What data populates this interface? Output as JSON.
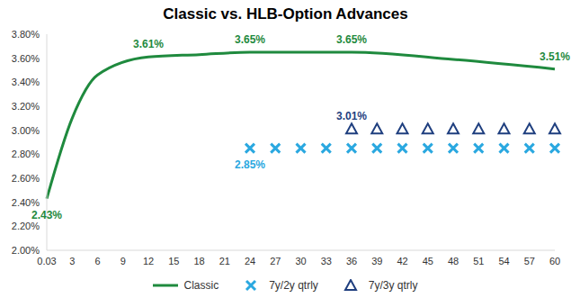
{
  "chart_data": {
    "type": "line",
    "title": "Classic vs. HLB-Option Advances",
    "categories": [
      "0.03",
      "3",
      "6",
      "9",
      "12",
      "15",
      "18",
      "21",
      "24",
      "27",
      "30",
      "33",
      "36",
      "39",
      "42",
      "45",
      "48",
      "51",
      "54",
      "57",
      "60"
    ],
    "series": [
      {
        "name": "Classic",
        "color": "#1f8a3e",
        "line_style": "solid",
        "marker": "none",
        "values": [
          2.43,
          3.1,
          3.46,
          null,
          3.61,
          null,
          3.63,
          null,
          3.65,
          null,
          null,
          null,
          3.65,
          null,
          null,
          null,
          3.59,
          null,
          null,
          null,
          3.51
        ],
        "value_labels": [
          "2.43%",
          null,
          null,
          null,
          "3.61%",
          null,
          null,
          null,
          "3.65%",
          null,
          null,
          null,
          "3.65%",
          null,
          null,
          null,
          null,
          null,
          null,
          null,
          "3.51%"
        ]
      },
      {
        "name": "7y/2y qtrly",
        "color": "#2aa8e0",
        "line_style": "none",
        "marker": "x",
        "values": [
          null,
          null,
          null,
          null,
          null,
          null,
          null,
          null,
          2.85,
          2.85,
          2.85,
          2.85,
          2.85,
          2.85,
          2.85,
          2.85,
          2.85,
          2.85,
          2.85,
          2.85,
          2.85
        ],
        "value_labels": [
          null,
          null,
          null,
          null,
          null,
          null,
          null,
          null,
          "2.85%",
          null,
          null,
          null,
          null,
          null,
          null,
          null,
          null,
          null,
          null,
          null,
          null
        ]
      },
      {
        "name": "7y/3y qtrly",
        "color": "#1f3f7f",
        "line_style": "none",
        "marker": "triangle",
        "values": [
          null,
          null,
          null,
          null,
          null,
          null,
          null,
          null,
          null,
          null,
          null,
          null,
          3.01,
          3.01,
          3.01,
          3.01,
          3.01,
          3.01,
          3.01,
          3.01,
          3.01
        ],
        "value_labels": [
          null,
          null,
          null,
          null,
          null,
          null,
          null,
          null,
          null,
          null,
          null,
          null,
          "3.01%",
          null,
          null,
          null,
          null,
          null,
          null,
          null,
          null
        ]
      }
    ],
    "ylim": [
      2.0,
      3.8
    ],
    "yticks": [
      {
        "value": 2.0,
        "label": "2.00%"
      },
      {
        "value": 2.2,
        "label": "2.20%"
      },
      {
        "value": 2.4,
        "label": "2.40%"
      },
      {
        "value": 2.6,
        "label": "2.60%"
      },
      {
        "value": 2.8,
        "label": "2.80%"
      },
      {
        "value": 3.0,
        "label": "3.00%"
      },
      {
        "value": 3.2,
        "label": "3.20%"
      },
      {
        "value": 3.4,
        "label": "3.40%"
      },
      {
        "value": 3.6,
        "label": "3.60%"
      },
      {
        "value": 3.8,
        "label": "3.80%"
      }
    ],
    "grid": false,
    "legend": "bottom",
    "data_labels": true
  }
}
